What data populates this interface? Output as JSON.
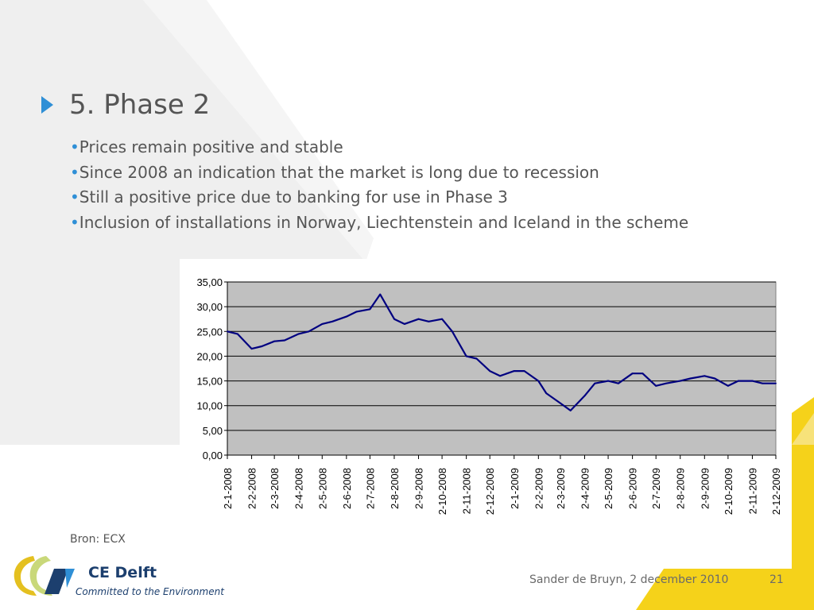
{
  "slide": {
    "title": "5. Phase 2",
    "bullet_marker": "•",
    "bullets": [
      "Prices remain positive and stable",
      "Since 2008 an indication that the market is long due to recession",
      "Still a positive price due to banking for use in Phase 3",
      "Inclusion of installations in Norway, Liechtenstein and Iceland in the scheme"
    ],
    "source": "Bron: ECX"
  },
  "footer": {
    "author_date": "Sander de Bruyn, 2 december 2010",
    "page_number": "21"
  },
  "logo": {
    "name": "CE Delft",
    "tagline": "Committed to the Environment"
  },
  "colors": {
    "accent_blue": "#2f8fd6",
    "accent_yellow": "#f5d21a",
    "line": "#000080",
    "plot_bg": "#c0c0c0"
  },
  "chart_data": {
    "type": "line",
    "title": "",
    "xlabel": "",
    "ylabel": "",
    "ylim": [
      0,
      35
    ],
    "yticks": [
      "0,00",
      "5,00",
      "10,00",
      "15,00",
      "20,00",
      "25,00",
      "30,00",
      "35,00"
    ],
    "grid": true,
    "x_tick_labels": [
      "2-1-2008",
      "2-2-2008",
      "2-3-2008",
      "2-4-2008",
      "2-5-2008",
      "2-6-2008",
      "2-7-2008",
      "2-8-2008",
      "2-9-2008",
      "2-10-2008",
      "2-11-2008",
      "2-12-2008",
      "2-1-2009",
      "2-2-2009",
      "2-3-2009",
      "2-4-2009",
      "2-5-2009",
      "2-6-2009",
      "2-7-2009",
      "2-8-2009",
      "2-9-2009",
      "2-10-2009",
      "2-11-2009",
      "2-12-2009"
    ],
    "series": [
      {
        "name": "",
        "x": [
          "2-1-2008",
          "15-1-2008",
          "2-2-2008",
          "15-2-2008",
          "2-3-2008",
          "15-3-2008",
          "2-4-2008",
          "15-4-2008",
          "2-5-2008",
          "15-5-2008",
          "2-6-2008",
          "15-6-2008",
          "2-7-2008",
          "15-7-2008",
          "2-8-2008",
          "15-8-2008",
          "2-9-2008",
          "15-9-2008",
          "2-10-2008",
          "15-10-2008",
          "2-11-2008",
          "15-11-2008",
          "2-12-2008",
          "15-12-2008",
          "2-1-2009",
          "15-1-2009",
          "2-2-2009",
          "12-2-2009",
          "2-3-2009",
          "15-3-2009",
          "2-4-2009",
          "15-4-2009",
          "2-5-2009",
          "15-5-2009",
          "2-6-2009",
          "15-6-2009",
          "2-7-2009",
          "15-7-2009",
          "2-8-2009",
          "15-8-2009",
          "2-9-2009",
          "15-9-2009",
          "2-10-2009",
          "15-10-2009",
          "2-11-2009",
          "15-11-2009",
          "2-12-2009"
        ],
        "values": [
          25.0,
          24.5,
          21.5,
          22.0,
          23.0,
          23.2,
          24.5,
          25.0,
          26.5,
          27.0,
          28.0,
          29.0,
          29.5,
          32.5,
          27.5,
          26.5,
          27.5,
          27.0,
          27.5,
          25.0,
          20.0,
          19.5,
          17.0,
          16.0,
          17.0,
          17.0,
          15.0,
          12.5,
          10.5,
          9.0,
          12.0,
          14.5,
          15.0,
          14.5,
          16.5,
          16.5,
          14.0,
          14.5,
          15.0,
          15.5,
          16.0,
          15.5,
          14.0,
          15.0,
          15.0,
          14.5,
          14.5
        ]
      }
    ]
  }
}
